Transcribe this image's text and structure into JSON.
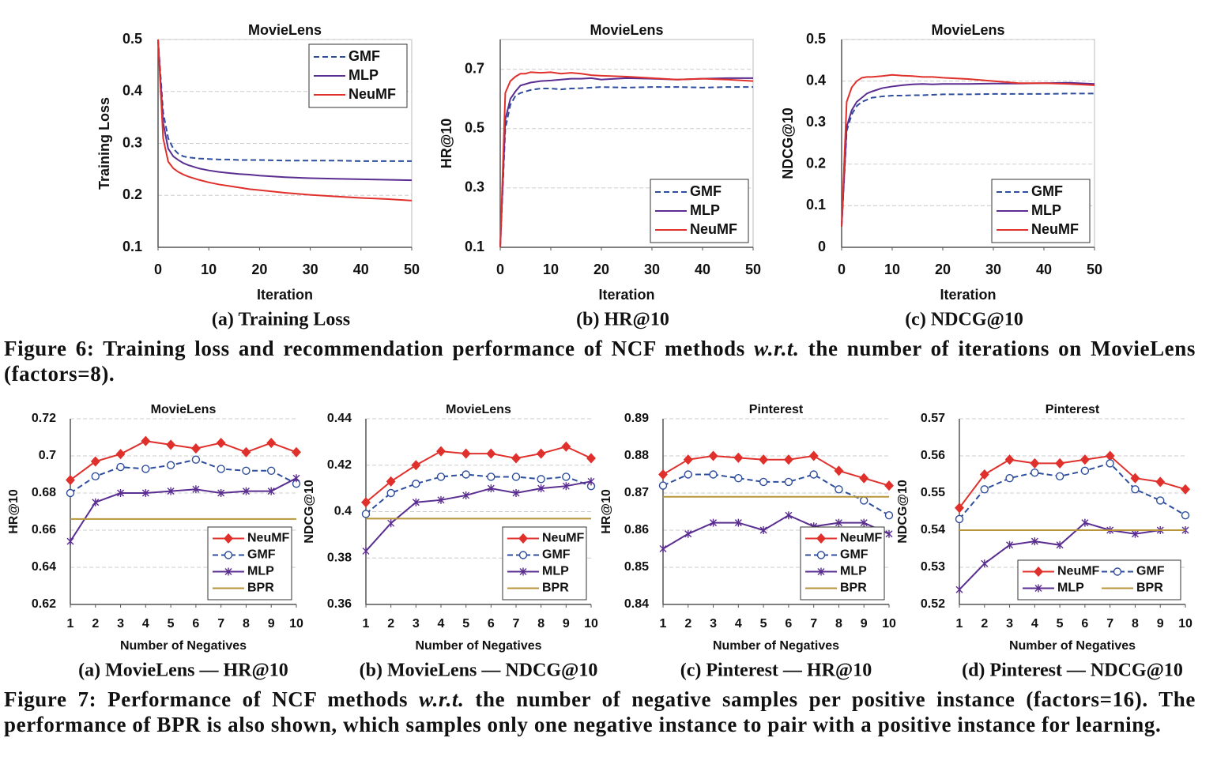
{
  "chart_data": [
    {
      "type": "line",
      "title": "MovieLens",
      "caption": "(a) Training Loss",
      "xlabel": "Iteration",
      "ylabel": "Training Loss",
      "x": [
        0,
        1,
        2,
        3,
        4,
        5,
        6,
        8,
        10,
        12,
        14,
        16,
        18,
        20,
        25,
        30,
        35,
        40,
        45,
        50
      ],
      "xlim": [
        0,
        50
      ],
      "xticks": [
        0,
        10,
        20,
        30,
        40,
        50
      ],
      "ylim": [
        0.1,
        0.5
      ],
      "yticks": [
        0.1,
        0.2,
        0.3,
        0.4,
        0.5
      ],
      "grid": true,
      "legend": "upper right",
      "series": [
        {
          "name": "GMF",
          "color": "#2e4d9c",
          "dash": true,
          "values": [
            0.5,
            0.36,
            0.31,
            0.29,
            0.28,
            0.275,
            0.273,
            0.271,
            0.27,
            0.269,
            0.269,
            0.268,
            0.268,
            0.268,
            0.267,
            0.267,
            0.267,
            0.266,
            0.266,
            0.266
          ]
        },
        {
          "name": "MLP",
          "color": "#5a2d90",
          "values": [
            0.5,
            0.34,
            0.29,
            0.275,
            0.268,
            0.262,
            0.258,
            0.252,
            0.248,
            0.245,
            0.243,
            0.241,
            0.24,
            0.238,
            0.235,
            0.233,
            0.232,
            0.231,
            0.23,
            0.229
          ]
        },
        {
          "name": "NeuMF",
          "color": "#e0302c",
          "values": [
            0.5,
            0.31,
            0.265,
            0.252,
            0.245,
            0.24,
            0.236,
            0.23,
            0.225,
            0.221,
            0.218,
            0.215,
            0.212,
            0.21,
            0.205,
            0.201,
            0.198,
            0.195,
            0.193,
            0.19
          ]
        }
      ]
    },
    {
      "type": "line",
      "title": "MovieLens",
      "caption": "(b) HR@10",
      "xlabel": "Iteration",
      "ylabel": "HR@10",
      "x": [
        0,
        1,
        2,
        3,
        4,
        5,
        6,
        8,
        10,
        12,
        14,
        16,
        18,
        20,
        25,
        30,
        35,
        40,
        45,
        50
      ],
      "xlim": [
        0,
        50
      ],
      "xticks": [
        0,
        10,
        20,
        30,
        40,
        50
      ],
      "ylim": [
        0.1,
        0.8
      ],
      "yticks": [
        0.1,
        0.3,
        0.5,
        0.7
      ],
      "grid": true,
      "legend": "lower right",
      "series": [
        {
          "name": "GMF",
          "color": "#2e4d9c",
          "dash": true,
          "values": [
            0.1,
            0.5,
            0.58,
            0.61,
            0.62,
            0.625,
            0.63,
            0.635,
            0.635,
            0.632,
            0.635,
            0.636,
            0.638,
            0.64,
            0.638,
            0.64,
            0.64,
            0.638,
            0.64,
            0.64
          ]
        },
        {
          "name": "MLP",
          "color": "#5a2d90",
          "values": [
            0.1,
            0.53,
            0.6,
            0.625,
            0.645,
            0.65,
            0.655,
            0.66,
            0.662,
            0.665,
            0.668,
            0.668,
            0.67,
            0.665,
            0.67,
            0.668,
            0.665,
            0.668,
            0.67,
            0.67
          ]
        },
        {
          "name": "NeuMF",
          "color": "#e0302c",
          "values": [
            0.1,
            0.62,
            0.66,
            0.675,
            0.685,
            0.685,
            0.69,
            0.688,
            0.69,
            0.685,
            0.688,
            0.685,
            0.68,
            0.678,
            0.675,
            0.67,
            0.665,
            0.668,
            0.665,
            0.66
          ]
        }
      ]
    },
    {
      "type": "line",
      "title": "MovieLens",
      "caption": "(c) NDCG@10",
      "xlabel": "Iteration",
      "ylabel": "NDCG@10",
      "x": [
        0,
        1,
        2,
        3,
        4,
        5,
        6,
        8,
        10,
        12,
        14,
        16,
        18,
        20,
        25,
        30,
        35,
        40,
        45,
        50
      ],
      "xlim": [
        0,
        50
      ],
      "xticks": [
        0,
        10,
        20,
        30,
        40,
        50
      ],
      "ylim": [
        0,
        0.5
      ],
      "yticks": [
        0,
        0.1,
        0.2,
        0.3,
        0.4,
        0.5
      ],
      "grid": true,
      "legend": "lower right",
      "series": [
        {
          "name": "GMF",
          "color": "#2e4d9c",
          "dash": true,
          "values": [
            0.05,
            0.28,
            0.32,
            0.34,
            0.35,
            0.355,
            0.36,
            0.363,
            0.365,
            0.365,
            0.366,
            0.366,
            0.367,
            0.368,
            0.368,
            0.369,
            0.369,
            0.369,
            0.37,
            0.37
          ]
        },
        {
          "name": "MLP",
          "color": "#5a2d90",
          "values": [
            0.05,
            0.29,
            0.33,
            0.35,
            0.36,
            0.37,
            0.375,
            0.383,
            0.387,
            0.39,
            0.392,
            0.393,
            0.392,
            0.393,
            0.393,
            0.394,
            0.394,
            0.395,
            0.396,
            0.393
          ]
        },
        {
          "name": "NeuMF",
          "color": "#e0302c",
          "values": [
            0.05,
            0.35,
            0.385,
            0.4,
            0.408,
            0.41,
            0.41,
            0.412,
            0.415,
            0.413,
            0.412,
            0.41,
            0.41,
            0.408,
            0.405,
            0.4,
            0.395,
            0.395,
            0.393,
            0.39
          ]
        }
      ]
    },
    {
      "type": "line",
      "title": "MovieLens",
      "caption": "(a) MovieLens — HR@10",
      "xlabel": "Number of Negatives",
      "ylabel": "HR@10",
      "x": [
        1,
        2,
        3,
        4,
        5,
        6,
        7,
        8,
        9,
        10
      ],
      "xlim": [
        1,
        10
      ],
      "xticks": [
        1,
        2,
        3,
        4,
        5,
        6,
        7,
        8,
        9,
        10
      ],
      "ylim": [
        0.62,
        0.72
      ],
      "yticks": [
        0.62,
        0.64,
        0.66,
        0.68,
        0.7,
        0.72
      ],
      "grid": true,
      "legend": "lower right",
      "series": [
        {
          "name": "NeuMF",
          "color": "#e0302c",
          "marker": "diamond",
          "values": [
            0.687,
            0.697,
            0.701,
            0.708,
            0.706,
            0.704,
            0.707,
            0.702,
            0.707,
            0.702
          ]
        },
        {
          "name": "GMF",
          "color": "#2e4d9c",
          "dash": true,
          "marker": "circle",
          "values": [
            0.68,
            0.689,
            0.694,
            0.693,
            0.695,
            0.698,
            0.693,
            0.692,
            0.692,
            0.685
          ]
        },
        {
          "name": "MLP",
          "color": "#5a2d90",
          "marker": "x",
          "values": [
            0.654,
            0.675,
            0.68,
            0.68,
            0.681,
            0.682,
            0.68,
            0.681,
            0.681,
            0.688
          ]
        },
        {
          "name": "BPR",
          "color": "#b8953a",
          "values": [
            0.666,
            0.666,
            0.666,
            0.666,
            0.666,
            0.666,
            0.666,
            0.666,
            0.666,
            0.666
          ]
        }
      ]
    },
    {
      "type": "line",
      "title": "MovieLens",
      "caption": "(b) MovieLens — NDCG@10",
      "xlabel": "Number of Negatives",
      "ylabel": "NDCG@10",
      "x": [
        1,
        2,
        3,
        4,
        5,
        6,
        7,
        8,
        9,
        10
      ],
      "xlim": [
        1,
        10
      ],
      "xticks": [
        1,
        2,
        3,
        4,
        5,
        6,
        7,
        8,
        9,
        10
      ],
      "ylim": [
        0.36,
        0.44
      ],
      "yticks": [
        0.36,
        0.38,
        0.4,
        0.42,
        0.44
      ],
      "grid": true,
      "legend": "lower right",
      "series": [
        {
          "name": "NeuMF",
          "color": "#e0302c",
          "marker": "diamond",
          "values": [
            0.404,
            0.413,
            0.42,
            0.426,
            0.425,
            0.425,
            0.423,
            0.425,
            0.428,
            0.423
          ]
        },
        {
          "name": "GMF",
          "color": "#2e4d9c",
          "dash": true,
          "marker": "circle",
          "values": [
            0.399,
            0.408,
            0.412,
            0.415,
            0.416,
            0.415,
            0.415,
            0.414,
            0.415,
            0.411
          ]
        },
        {
          "name": "MLP",
          "color": "#5a2d90",
          "marker": "x",
          "values": [
            0.383,
            0.395,
            0.404,
            0.405,
            0.407,
            0.41,
            0.408,
            0.41,
            0.411,
            0.413
          ]
        },
        {
          "name": "BPR",
          "color": "#b8953a",
          "values": [
            0.397,
            0.397,
            0.397,
            0.397,
            0.397,
            0.397,
            0.397,
            0.397,
            0.397,
            0.397
          ]
        }
      ]
    },
    {
      "type": "line",
      "title": "Pinterest",
      "caption": "(c) Pinterest — HR@10",
      "xlabel": "Number of Negatives",
      "ylabel": "HR@10",
      "x": [
        1,
        2,
        3,
        4,
        5,
        6,
        7,
        8,
        9,
        10
      ],
      "xlim": [
        1,
        10
      ],
      "xticks": [
        1,
        2,
        3,
        4,
        5,
        6,
        7,
        8,
        9,
        10
      ],
      "ylim": [
        0.84,
        0.89
      ],
      "yticks": [
        0.84,
        0.85,
        0.86,
        0.87,
        0.88,
        0.89
      ],
      "grid": true,
      "legend": "lower right",
      "series": [
        {
          "name": "NeuMF",
          "color": "#e0302c",
          "marker": "diamond",
          "values": [
            0.875,
            0.879,
            0.88,
            0.8795,
            0.879,
            0.879,
            0.88,
            0.876,
            0.874,
            0.872
          ]
        },
        {
          "name": "GMF",
          "color": "#2e4d9c",
          "dash": true,
          "marker": "circle",
          "values": [
            0.872,
            0.875,
            0.875,
            0.874,
            0.873,
            0.873,
            0.875,
            0.871,
            0.868,
            0.864
          ]
        },
        {
          "name": "MLP",
          "color": "#5a2d90",
          "marker": "x",
          "values": [
            0.855,
            0.859,
            0.862,
            0.862,
            0.86,
            0.864,
            0.861,
            0.862,
            0.862,
            0.859
          ]
        },
        {
          "name": "BPR",
          "color": "#b8953a",
          "values": [
            0.869,
            0.869,
            0.869,
            0.869,
            0.869,
            0.869,
            0.869,
            0.869,
            0.869,
            0.869
          ]
        }
      ]
    },
    {
      "type": "line",
      "title": "Pinterest",
      "caption": "(d) Pinterest — NDCG@10",
      "xlabel": "Number of Negatives",
      "ylabel": "NDCG@10",
      "x": [
        1,
        2,
        3,
        4,
        5,
        6,
        7,
        8,
        9,
        10
      ],
      "xlim": [
        1,
        10
      ],
      "xticks": [
        1,
        2,
        3,
        4,
        5,
        6,
        7,
        8,
        9,
        10
      ],
      "ylim": [
        0.52,
        0.57
      ],
      "yticks": [
        0.52,
        0.53,
        0.54,
        0.55,
        0.56,
        0.57
      ],
      "grid": true,
      "legend": "lower right",
      "legend_columns": 2,
      "series": [
        {
          "name": "NeuMF",
          "color": "#e0302c",
          "marker": "diamond",
          "values": [
            0.546,
            0.555,
            0.559,
            0.558,
            0.558,
            0.559,
            0.56,
            0.554,
            0.553,
            0.551
          ]
        },
        {
          "name": "GMF",
          "color": "#2e4d9c",
          "dash": true,
          "marker": "circle",
          "values": [
            0.543,
            0.551,
            0.554,
            0.5555,
            0.5545,
            0.556,
            0.558,
            0.551,
            0.548,
            0.544
          ]
        },
        {
          "name": "MLP",
          "color": "#5a2d90",
          "marker": "x",
          "values": [
            0.524,
            0.531,
            0.536,
            0.537,
            0.536,
            0.542,
            0.54,
            0.539,
            0.54,
            0.54
          ]
        },
        {
          "name": "BPR",
          "color": "#b8953a",
          "values": [
            0.54,
            0.54,
            0.54,
            0.54,
            0.54,
            0.54,
            0.54,
            0.54,
            0.54,
            0.54
          ]
        }
      ]
    }
  ],
  "figure_captions": [
    {
      "parts": [
        "Figure 6: Training loss and recommendation performance of NCF methods",
        "w.r.t.",
        "the number of iterations on MovieLens (factors=8)."
      ]
    },
    {
      "parts": [
        "Figure 7: Performance of NCF methods",
        "w.r.t.",
        "the number of negative samples per positive instance (factors=16). The performance of BPR is also shown, which samples only one negative instance to pair with a positive instance for learning."
      ]
    }
  ]
}
